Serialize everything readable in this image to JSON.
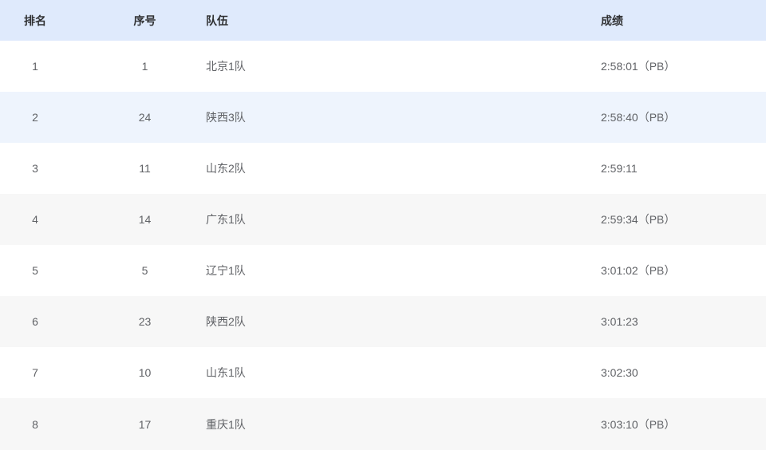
{
  "table": {
    "columns": [
      {
        "key": "rank",
        "label": "排名"
      },
      {
        "key": "number",
        "label": "序号"
      },
      {
        "key": "team",
        "label": "队伍"
      },
      {
        "key": "result",
        "label": "成绩"
      }
    ],
    "rows": [
      {
        "rank": "1",
        "number": "1",
        "team": "北京1队",
        "result": "2:58:01（PB）"
      },
      {
        "rank": "2",
        "number": "24",
        "team": "陕西3队",
        "result": "2:58:40（PB）"
      },
      {
        "rank": "3",
        "number": "11",
        "team": "山东2队",
        "result": "2:59:11"
      },
      {
        "rank": "4",
        "number": "14",
        "team": "广东1队",
        "result": "2:59:34（PB）"
      },
      {
        "rank": "5",
        "number": "5",
        "team": "辽宁1队",
        "result": "3:01:02（PB）"
      },
      {
        "rank": "6",
        "number": "23",
        "team": "陕西2队",
        "result": "3:01:23"
      },
      {
        "rank": "7",
        "number": "10",
        "team": "山东1队",
        "result": "3:02:30"
      },
      {
        "rank": "8",
        "number": "17",
        "team": "重庆1队",
        "result": "3:03:10（PB）"
      }
    ],
    "highlighted_row_index": 1
  },
  "colors": {
    "header_bg": "#dfeafc",
    "stripe_bg": "#f7f7f7",
    "highlight_bg": "#eef4fd",
    "header_text": "#303133",
    "cell_text": "#606266"
  }
}
